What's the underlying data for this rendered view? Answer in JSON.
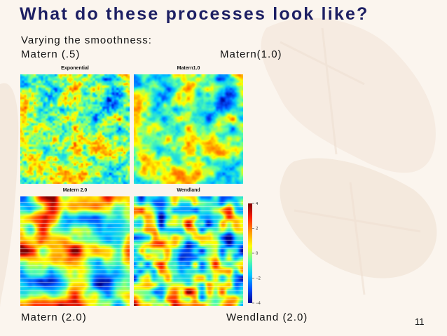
{
  "slide": {
    "title": "What do these processes look like?",
    "subtitle": "Varying the smoothness:",
    "captions": {
      "top_left": "Matern (.5)",
      "top_right": "Matern(1.0)",
      "bottom_left": "Matern (2.0)",
      "bottom_right": "Wendland (2.0)"
    },
    "slide_number": "11"
  },
  "panels": [
    {
      "label": "Exponential"
    },
    {
      "label": "Matern1.0"
    },
    {
      "label": "Matern 2.0"
    },
    {
      "label": "Wendland"
    }
  ],
  "colorbar": {
    "ticks": [
      "4",
      "2",
      "0",
      "−2",
      "−4"
    ],
    "tick_values": [
      4,
      2,
      0,
      -2,
      -4
    ],
    "range": [
      -4,
      4
    ],
    "colors": [
      "#00008f",
      "#0050ff",
      "#00c8ff",
      "#5affa5",
      "#ffff00",
      "#ff9600",
      "#ff1e00",
      "#800000"
    ]
  }
}
